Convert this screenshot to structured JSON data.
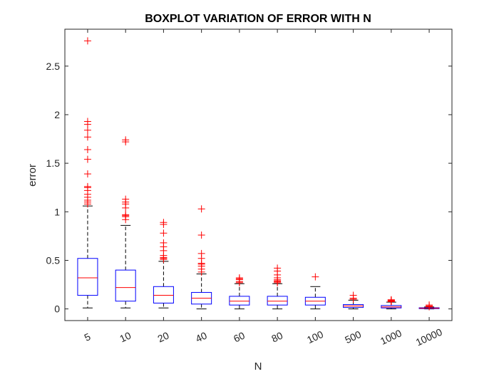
{
  "chart_data": {
    "type": "box",
    "title": "BOXPLOT VARIATION OF ERROR WITH N",
    "xlabel": "N",
    "ylabel": "error",
    "ylim": [
      -0.12,
      2.88
    ],
    "yticks": [
      "0",
      "0.5",
      "1",
      "1.5",
      "2",
      "2.5"
    ],
    "ytick_values": [
      0,
      0.5,
      1,
      1.5,
      2,
      2.5
    ],
    "categories": [
      "5",
      "10",
      "20",
      "40",
      "60",
      "80",
      "100",
      "500",
      "1000",
      "10000"
    ],
    "boxes": [
      {
        "whisker_low": 0.01,
        "q1": 0.14,
        "median": 0.32,
        "q3": 0.52,
        "whisker_high": 1.06,
        "outliers": [
          1.08,
          1.1,
          1.12,
          1.15,
          1.18,
          1.22,
          1.25,
          1.26,
          1.39,
          1.54,
          1.64,
          1.77,
          1.84,
          1.9,
          1.93,
          2.76
        ]
      },
      {
        "whisker_low": 0.01,
        "q1": 0.08,
        "median": 0.22,
        "q3": 0.4,
        "whisker_high": 0.86,
        "outliers": [
          0.92,
          0.95,
          0.96,
          0.97,
          1.04,
          1.08,
          1.1,
          1.13,
          1.72,
          1.74
        ]
      },
      {
        "whisker_low": 0.01,
        "q1": 0.06,
        "median": 0.14,
        "q3": 0.23,
        "whisker_high": 0.49,
        "outliers": [
          0.51,
          0.52,
          0.53,
          0.55,
          0.6,
          0.64,
          0.68,
          0.78,
          0.87,
          0.89
        ]
      },
      {
        "whisker_low": 0.0,
        "q1": 0.05,
        "median": 0.11,
        "q3": 0.17,
        "whisker_high": 0.36,
        "outliers": [
          0.38,
          0.41,
          0.44,
          0.46,
          0.47,
          0.52,
          0.57,
          0.76,
          1.03
        ]
      },
      {
        "whisker_low": 0.0,
        "q1": 0.04,
        "median": 0.08,
        "q3": 0.13,
        "whisker_high": 0.26,
        "outliers": [
          0.27,
          0.28,
          0.3,
          0.31,
          0.32
        ]
      },
      {
        "whisker_low": 0.0,
        "q1": 0.04,
        "median": 0.08,
        "q3": 0.13,
        "whisker_high": 0.26,
        "outliers": [
          0.27,
          0.28,
          0.29,
          0.3,
          0.32,
          0.35,
          0.39,
          0.42
        ]
      },
      {
        "whisker_low": 0.0,
        "q1": 0.04,
        "median": 0.08,
        "q3": 0.12,
        "whisker_high": 0.23,
        "outliers": [
          0.33
        ]
      },
      {
        "whisker_low": 0.0,
        "q1": 0.015,
        "median": 0.03,
        "q3": 0.045,
        "whisker_high": 0.09,
        "outliers": [
          0.1,
          0.11,
          0.14
        ]
      },
      {
        "whisker_low": 0.0,
        "q1": 0.01,
        "median": 0.02,
        "q3": 0.035,
        "whisker_high": 0.07,
        "outliers": [
          0.075,
          0.08,
          0.085,
          0.09,
          0.095
        ]
      },
      {
        "whisker_low": 0.0,
        "q1": 0.003,
        "median": 0.007,
        "q3": 0.012,
        "whisker_high": 0.02,
        "outliers": [
          0.022,
          0.025,
          0.03,
          0.04
        ]
      }
    ],
    "colors": {
      "box": "#0000ff",
      "median": "#ff0000",
      "whisker": "#000000",
      "outlier": "#ff0000",
      "axes": "#262626"
    },
    "grid": false
  }
}
